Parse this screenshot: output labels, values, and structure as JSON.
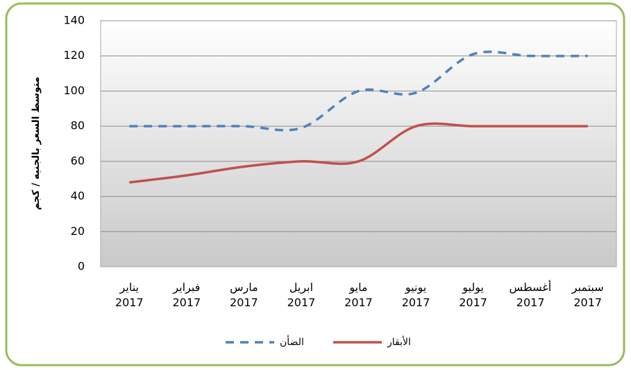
{
  "chart_data": {
    "type": "line",
    "y_label": "متوسط السعر بالجنيه / كجم",
    "categories": [
      "يناير 2017",
      "فبراير 2017",
      "مارس 2017",
      "ابريل 2017",
      "مايو 2017",
      "يونيو 2017",
      "يوليو 2017",
      "أغسطس 2017",
      "سبتمبر 2017"
    ],
    "series": [
      {
        "name": "الضأن",
        "color": "#4f81bd",
        "dash": true,
        "values": [
          80,
          80,
          80,
          79,
          100,
          99,
          121,
          120,
          120
        ]
      },
      {
        "name": "الأبقار",
        "color": "#c0504d",
        "dash": false,
        "values": [
          48,
          52,
          57,
          60,
          60,
          80,
          80,
          80,
          80
        ]
      }
    ],
    "ylim": [
      0,
      140
    ],
    "yticks": [
      0,
      20,
      40,
      60,
      80,
      100,
      120,
      140
    ],
    "grid": true
  }
}
